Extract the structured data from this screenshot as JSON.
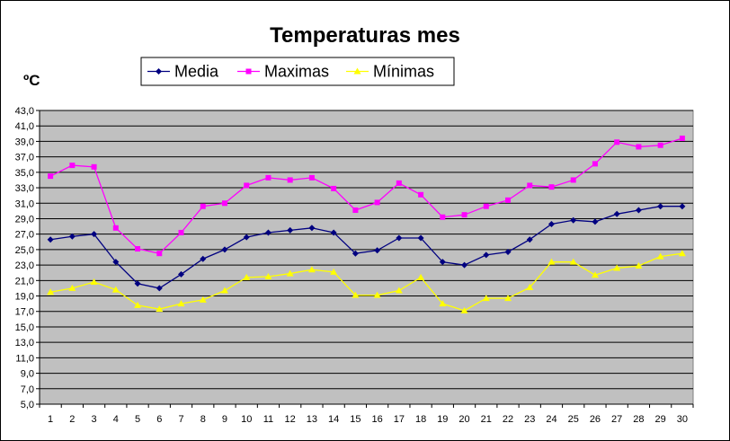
{
  "chart_data": {
    "type": "line",
    "title": "Temperaturas mes",
    "ylabel": "ºC",
    "xlabel": "",
    "x": [
      1,
      2,
      3,
      4,
      5,
      6,
      7,
      8,
      9,
      10,
      11,
      12,
      13,
      14,
      15,
      16,
      17,
      18,
      19,
      20,
      21,
      22,
      23,
      24,
      25,
      26,
      27,
      28,
      29,
      30
    ],
    "ylim": [
      5,
      43
    ],
    "ytick_step": 2,
    "ytick_labels": [
      "5,0",
      "7,0",
      "9,0",
      "11,0",
      "13,0",
      "15,0",
      "17,0",
      "19,0",
      "21,0",
      "23,0",
      "25,0",
      "27,0",
      "29,0",
      "31,0",
      "33,0",
      "35,0",
      "37,0",
      "39,0",
      "41,0",
      "43,0"
    ],
    "grid": true,
    "plot_background": "#c0c0c0",
    "legend_position": "top-left",
    "series": [
      {
        "name": "Media",
        "color": "#000080",
        "marker": "diamond",
        "values": [
          26.3,
          26.7,
          27.0,
          23.4,
          20.6,
          20.0,
          21.8,
          23.8,
          25.0,
          26.6,
          27.2,
          27.5,
          27.8,
          27.2,
          24.5,
          24.9,
          26.5,
          26.5,
          23.4,
          23.0,
          24.3,
          24.7,
          26.3,
          28.3,
          28.8,
          28.6,
          29.6,
          30.1,
          30.6,
          30.6
        ]
      },
      {
        "name": "Maximas",
        "color": "#ff00ff",
        "marker": "square",
        "values": [
          34.5,
          35.9,
          35.7,
          27.8,
          25.1,
          24.5,
          27.2,
          30.6,
          31.0,
          33.3,
          34.3,
          34.0,
          34.3,
          32.9,
          30.1,
          31.1,
          33.6,
          32.1,
          29.2,
          29.5,
          30.6,
          31.4,
          33.3,
          33.1,
          34.0,
          36.1,
          38.9,
          38.3,
          38.5,
          39.4
        ]
      },
      {
        "name": "Mínimas",
        "color": "#ffff00",
        "marker": "triangle",
        "values": [
          19.5,
          20.0,
          20.8,
          19.8,
          17.8,
          17.3,
          18.0,
          18.5,
          19.7,
          21.4,
          21.5,
          21.9,
          22.4,
          22.1,
          19.1,
          19.1,
          19.7,
          21.4,
          18.0,
          17.1,
          18.7,
          18.7,
          20.1,
          23.4,
          23.4,
          21.7,
          22.6,
          22.9,
          24.1,
          24.5
        ]
      }
    ]
  }
}
